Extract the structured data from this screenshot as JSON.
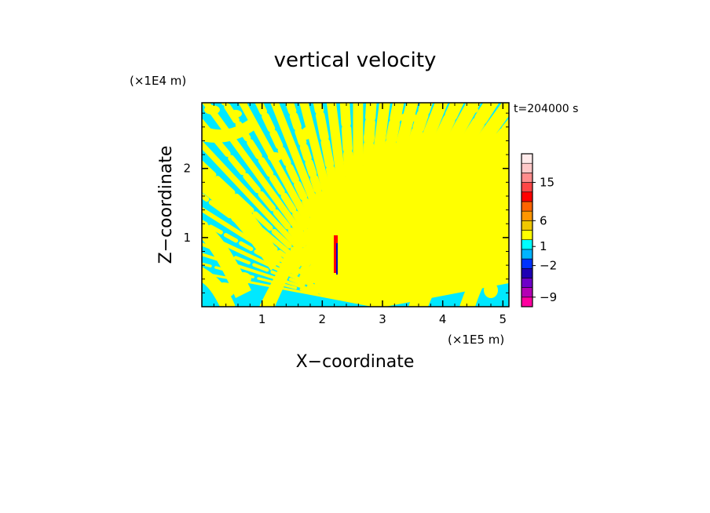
{
  "chart_data": {
    "type": "heatmap",
    "title": "vertical velocity",
    "xlabel": "X−coordinate",
    "ylabel": "Z−coordinate",
    "x_unit": "(×1E5 m)",
    "y_unit": "(×1E4 m)",
    "time_label": "t=204000 s",
    "xlim": [
      0,
      5.1
    ],
    "ylim": [
      0,
      2.95
    ],
    "x_ticks": [
      "1",
      "2",
      "3",
      "4",
      "5"
    ],
    "y_ticks": [
      "1",
      "2"
    ],
    "colorbar": {
      "tick_labels": [
        "15",
        "6",
        "1",
        "−2",
        "−9"
      ],
      "tick_values": [
        15,
        6,
        1,
        -2,
        -9
      ],
      "colors": [
        "#ff00a0",
        "#b400b4",
        "#6e00c8",
        "#1e00b4",
        "#0032ff",
        "#00b4ff",
        "#00ffff",
        "#ffff00",
        "#f0c800",
        "#ff9600",
        "#ff6400",
        "#ff0000",
        "#ff4646",
        "#ff8c8c",
        "#ffc8c8",
        "#ffeaea"
      ]
    },
    "field_colors": {
      "negative": "#00e8ff",
      "positive": "#ffff00",
      "strong_negative": "#0000c8",
      "strong_positive": "#ff0000"
    }
  }
}
